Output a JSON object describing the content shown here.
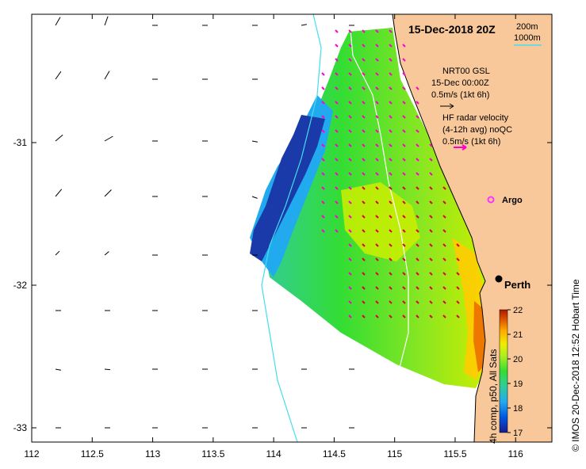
{
  "map": {
    "title": "15-Dec-2018 20Z",
    "x_ticks": [
      "112",
      "112.5",
      "113",
      "113.5",
      "114",
      "114.5",
      "115",
      "115.5",
      "116"
    ],
    "y_ticks": [
      "-31",
      "-32",
      "-33"
    ],
    "x_range": [
      112.0,
      116.3
    ],
    "y_range": [
      -33.1,
      -30.1
    ],
    "isobaths": {
      "label_200": "200m",
      "label_1000": "1000m",
      "color": "#44ddee"
    },
    "land_color": "#f8c89a",
    "city": {
      "name": "Perth",
      "lon": 115.86,
      "lat": -31.95
    },
    "argo": {
      "label": "Argo",
      "lon": 115.74,
      "lat": -31.4,
      "color": "#ff33ff"
    },
    "legend_model": {
      "line1": "NRT00 GSL",
      "line2": "15-Dec 00:00Z",
      "line3": "0.5m/s (1kt 6h)",
      "arrow_color": "#000000"
    },
    "legend_radar": {
      "line1": "HF radar velocity",
      "line2": "(4-12h avg) noQC",
      "line3": "0.5m/s (1kt 6h)",
      "arrow_color": "#ff00cc"
    }
  },
  "colorbar": {
    "label": "4h comp, p50, All Sats",
    "ticks": [
      "17",
      "18",
      "19",
      "20",
      "21",
      "22"
    ],
    "min": 17,
    "max": 22,
    "colors": [
      "#1a1a8c",
      "#0055dd",
      "#22aaee",
      "#33cc99",
      "#33dd33",
      "#aaee22",
      "#eeee00",
      "#ffaa00",
      "#dd5500",
      "#aa1a00"
    ]
  },
  "credit": "© IMOS 20-Dec-2018 12:52 Hobart Time"
}
